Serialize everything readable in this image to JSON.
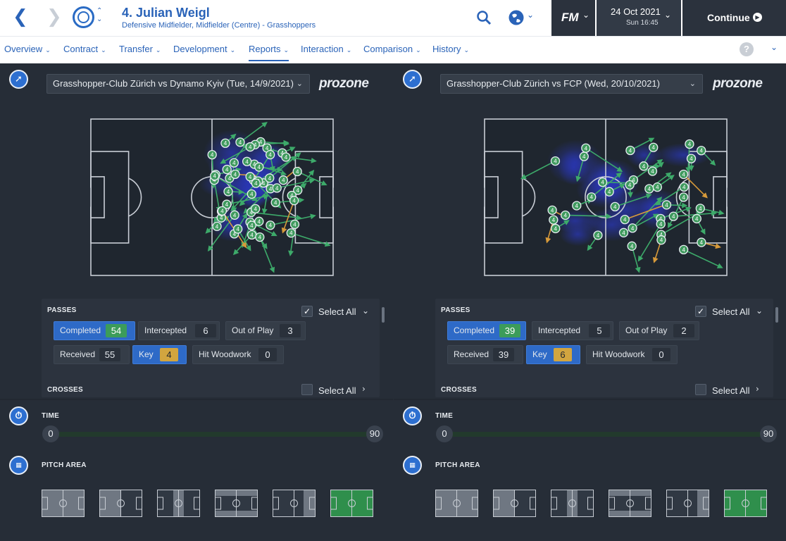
{
  "header": {
    "player_title": "4. Julian Weigl",
    "player_subtitle": "Defensive Midfielder, Midfielder (Centre) - Grasshoppers",
    "fm_logo": "FM",
    "date": "24 Oct 2021",
    "time": "Sun 16:45",
    "continue_label": "Continue",
    "icons": [
      "back-icon",
      "forward-icon",
      "club-badge-icon",
      "search-icon",
      "globe-icon",
      "chevron-down-icon",
      "continue-arrow-icon"
    ]
  },
  "nav": {
    "items": [
      {
        "label": "Overview"
      },
      {
        "label": "Contract"
      },
      {
        "label": "Transfer"
      },
      {
        "label": "Development"
      },
      {
        "label": "Reports"
      },
      {
        "label": "Interaction"
      },
      {
        "label": "Comparison"
      },
      {
        "label": "History"
      }
    ],
    "active": "Reports",
    "help": "?"
  },
  "panels": [
    {
      "match": "Grasshopper-Club Zürich vs Dynamo Kyiv (Tue, 14/9/2021)",
      "provider": "prozone",
      "player_marker": "4",
      "passes": {
        "title": "PASSES",
        "select_all": "Select All",
        "completed": {
          "label": "Completed",
          "value": "54"
        },
        "intercepted": {
          "label": "Intercepted",
          "value": "6"
        },
        "out_of_play": {
          "label": "Out of Play",
          "value": "3"
        },
        "received": {
          "label": "Received",
          "value": "55"
        },
        "key": {
          "label": "Key",
          "value": "4"
        },
        "hit_woodwork": {
          "label": "Hit Woodwork",
          "value": "0"
        }
      },
      "crosses": {
        "title": "CROSSES",
        "select_all": "Select All"
      },
      "time": {
        "title": "TIME",
        "start": "0",
        "end": "90"
      },
      "pitch_area": {
        "title": "PITCH AREA"
      }
    },
    {
      "match": "Grasshopper-Club Zürich vs FCP (Wed, 20/10/2021)",
      "provider": "prozone",
      "player_marker": "4",
      "passes": {
        "title": "PASSES",
        "select_all": "Select All",
        "completed": {
          "label": "Completed",
          "value": "39"
        },
        "intercepted": {
          "label": "Intercepted",
          "value": "5"
        },
        "out_of_play": {
          "label": "Out of Play",
          "value": "2"
        },
        "received": {
          "label": "Received",
          "value": "39"
        },
        "key": {
          "label": "Key",
          "value": "6"
        },
        "hit_woodwork": {
          "label": "Hit Woodwork",
          "value": "0"
        }
      },
      "crosses": {
        "title": "CROSSES",
        "select_all": "Select All"
      },
      "time": {
        "title": "TIME",
        "start": "0",
        "end": "90"
      },
      "pitch_area": {
        "title": "PITCH AREA"
      }
    }
  ],
  "colors": {
    "accent": "#2a63b8",
    "completed_pass": "#3daa6a",
    "key_pass": "#d79a3a",
    "heat": "#2a37b8",
    "pitch_area_selected": "#2f8f4c"
  }
}
